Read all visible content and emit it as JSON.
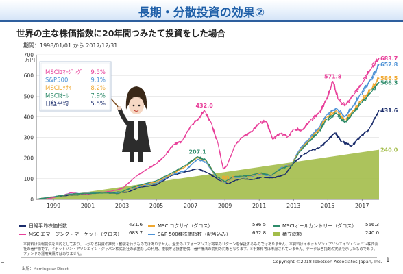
{
  "header": {
    "title": "長期・分散投資の効果②"
  },
  "subtitle": "世界の主な株価指数に20年間つみたて投資をした場合",
  "period": "期間：1998/01/01 から 2017/12/31",
  "callout": {
    "rows": [
      {
        "name": "MSCIｴﾏｰｼﾞﾝｸﾞ",
        "rate": "9.5%",
        "color": "#e8409a"
      },
      {
        "name": "S&P500",
        "rate": "9.1%",
        "color": "#4f93d6"
      },
      {
        "name": "MSCIｺｸｻｲ",
        "rate": "8.2%",
        "color": "#f0a830"
      },
      {
        "name": "MSCIｵｰﾙ",
        "rate": "7.9%",
        "color": "#2e8b6a"
      },
      {
        "name": "日経平均",
        "rate": "5.5%",
        "color": "#1a2c6b"
      }
    ]
  },
  "chart_data": {
    "type": "line",
    "yunit": "万円",
    "ylim": [
      0,
      700
    ],
    "yticks": [
      0,
      100,
      200,
      300,
      400,
      500,
      600,
      700
    ],
    "xlim": [
      1998,
      2017.99
    ],
    "xticks": [
      1999,
      2001,
      2003,
      2005,
      2007,
      2009,
      2011,
      2013,
      2015,
      2017
    ],
    "grid": true,
    "series": [
      {
        "name": "日経平均株価指数",
        "color": "#1a2c6b",
        "final": "431.6",
        "points": [
          [
            1998,
            1
          ],
          [
            1999,
            10
          ],
          [
            1999.9,
            21
          ],
          [
            2000.5,
            22
          ],
          [
            2001.3,
            29
          ],
          [
            2002,
            33
          ],
          [
            2002.9,
            35
          ],
          [
            2003.3,
            34
          ],
          [
            2004,
            58
          ],
          [
            2005,
            70
          ],
          [
            2005.9,
            115
          ],
          [
            2006.5,
            128
          ],
          [
            2007.4,
            148
          ],
          [
            2008,
            128
          ],
          [
            2008.7,
            92
          ],
          [
            2009.2,
            76
          ],
          [
            2009.6,
            92
          ],
          [
            2010,
            100
          ],
          [
            2010.6,
            96
          ],
          [
            2011.2,
            108
          ],
          [
            2011.8,
            104
          ],
          [
            2012.5,
            120
          ],
          [
            2013,
            175
          ],
          [
            2013.5,
            212
          ],
          [
            2014,
            236
          ],
          [
            2014.5,
            248
          ],
          [
            2015,
            285
          ],
          [
            2015.4,
            322
          ],
          [
            2015.8,
            280
          ],
          [
            2016.4,
            258
          ],
          [
            2016.9,
            305
          ],
          [
            2017.4,
            338
          ],
          [
            2017.99,
            431.6
          ]
        ]
      },
      {
        "name": "MSCIエマージング・マーケット（グロス）",
        "color": "#e8409a",
        "final": "683.7",
        "points": [
          [
            1998,
            1
          ],
          [
            1998.7,
            4
          ],
          [
            1999.5,
            18
          ],
          [
            2000,
            32
          ],
          [
            2000.8,
            25
          ],
          [
            2001.5,
            32
          ],
          [
            2002.3,
            38
          ],
          [
            2003,
            52
          ],
          [
            2003.8,
            110
          ],
          [
            2004.5,
            148
          ],
          [
            2005,
            172
          ],
          [
            2005.5,
            210
          ],
          [
            2006,
            265
          ],
          [
            2006.5,
            282
          ],
          [
            2007,
            355
          ],
          [
            2007.5,
            395
          ],
          [
            2007.8,
            432
          ],
          [
            2008.2,
            372
          ],
          [
            2008.6,
            270
          ],
          [
            2008.9,
            148
          ],
          [
            2009.1,
            160
          ],
          [
            2009.6,
            262
          ],
          [
            2010,
            300
          ],
          [
            2010.6,
            330
          ],
          [
            2011,
            368
          ],
          [
            2011.4,
            378
          ],
          [
            2011.8,
            290
          ],
          [
            2012.2,
            320
          ],
          [
            2012.7,
            305
          ],
          [
            2013,
            340
          ],
          [
            2013.5,
            335
          ],
          [
            2014,
            385
          ],
          [
            2014.5,
            420
          ],
          [
            2014.9,
            480
          ],
          [
            2015.3,
            571.8
          ],
          [
            2015.6,
            485
          ],
          [
            2016,
            452
          ],
          [
            2016.5,
            505
          ],
          [
            2017,
            560
          ],
          [
            2017.5,
            630
          ],
          [
            2017.99,
            683.7
          ]
        ]
      },
      {
        "name": "S&P 500種株価指数（配当込み）",
        "color": "#4f93d6",
        "final": "652.8",
        "points": [
          [
            1998,
            1
          ],
          [
            1999,
            13
          ],
          [
            2000,
            27
          ],
          [
            2001,
            30
          ],
          [
            2002,
            33
          ],
          [
            2002.8,
            29
          ],
          [
            2003.5,
            50
          ],
          [
            2004.3,
            68
          ],
          [
            2005,
            78
          ],
          [
            2005.9,
            118
          ],
          [
            2006.7,
            140
          ],
          [
            2007.4,
            195
          ],
          [
            2007.9,
            180
          ],
          [
            2008.5,
            110
          ],
          [
            2009,
            80
          ],
          [
            2009.5,
            106
          ],
          [
            2010,
            108
          ],
          [
            2010.5,
            110
          ],
          [
            2011,
            122
          ],
          [
            2011.7,
            112
          ],
          [
            2012.3,
            155
          ],
          [
            2012.9,
            170
          ],
          [
            2013.3,
            235
          ],
          [
            2013.9,
            292
          ],
          [
            2014.5,
            348
          ],
          [
            2014.9,
            406
          ],
          [
            2015.5,
            442
          ],
          [
            2016,
            400
          ],
          [
            2016.5,
            455
          ],
          [
            2016.9,
            510
          ],
          [
            2017.5,
            580
          ],
          [
            2017.99,
            652.8
          ]
        ]
      },
      {
        "name": "MSCIコクサイ（グロス）",
        "color": "#f0a830",
        "final": "586.5",
        "points": [
          [
            1998,
            1
          ],
          [
            1999,
            12
          ],
          [
            2000,
            25
          ],
          [
            2001,
            28
          ],
          [
            2002,
            31
          ],
          [
            2002.8,
            27
          ],
          [
            2003.5,
            52
          ],
          [
            2004.3,
            72
          ],
          [
            2005,
            85
          ],
          [
            2005.9,
            122
          ],
          [
            2006.7,
            158
          ],
          [
            2007.4,
            205
          ],
          [
            2007.9,
            188
          ],
          [
            2008.5,
            112
          ],
          [
            2009,
            82
          ],
          [
            2009.5,
            108
          ],
          [
            2010,
            110
          ],
          [
            2010.5,
            112
          ],
          [
            2011,
            125
          ],
          [
            2011.7,
            114
          ],
          [
            2012.3,
            150
          ],
          [
            2012.9,
            168
          ],
          [
            2013.3,
            228
          ],
          [
            2013.9,
            286
          ],
          [
            2014.5,
            340
          ],
          [
            2014.9,
            395
          ],
          [
            2015.5,
            430
          ],
          [
            2016,
            385
          ],
          [
            2016.5,
            430
          ],
          [
            2016.9,
            472
          ],
          [
            2017.5,
            530
          ],
          [
            2017.99,
            586.5
          ]
        ]
      },
      {
        "name": "MSCIオールカントリー（グロス）",
        "color": "#2e8b6a",
        "final": "566.3",
        "points": [
          [
            1998,
            1
          ],
          [
            1999,
            12
          ],
          [
            2000,
            25
          ],
          [
            2001,
            28
          ],
          [
            2002,
            31
          ],
          [
            2002.8,
            28
          ],
          [
            2003.5,
            55
          ],
          [
            2004.3,
            76
          ],
          [
            2005,
            90
          ],
          [
            2005.9,
            128
          ],
          [
            2006.7,
            165
          ],
          [
            2007.4,
            207.1
          ],
          [
            2007.9,
            190
          ],
          [
            2008.5,
            112
          ],
          [
            2009,
            85
          ],
          [
            2009.5,
            110
          ],
          [
            2010,
            112
          ],
          [
            2010.5,
            114
          ],
          [
            2011,
            128
          ],
          [
            2011.7,
            116
          ],
          [
            2012.3,
            150
          ],
          [
            2012.9,
            165
          ],
          [
            2013.3,
            225
          ],
          [
            2013.9,
            280
          ],
          [
            2014.5,
            330
          ],
          [
            2014.9,
            385
          ],
          [
            2015.5,
            418
          ],
          [
            2016,
            372
          ],
          [
            2016.5,
            420
          ],
          [
            2016.9,
            460
          ],
          [
            2017.5,
            515
          ],
          [
            2017.99,
            566.3
          ]
        ]
      }
    ],
    "area": {
      "name": "積立総額",
      "color": "#a3bd4a",
      "start": [
        1998,
        0
      ],
      "end": [
        2017.99,
        240
      ],
      "final": "240.0"
    },
    "annotations": [
      {
        "text": "683.7",
        "x": 2017.99,
        "y": 683.7,
        "color": "#e8409a"
      },
      {
        "text": "652.8",
        "x": 2017.99,
        "y": 652.8,
        "color": "#4f93d6"
      },
      {
        "text": "586.5",
        "x": 2017.99,
        "y": 586.5,
        "color": "#f0a830"
      },
      {
        "text": "566.3",
        "x": 2017.99,
        "y": 566.3,
        "color": "#2e8b6a"
      },
      {
        "text": "431.6",
        "x": 2017.99,
        "y": 431.6,
        "color": "#1a2c6b"
      },
      {
        "text": "240.0",
        "x": 2017.99,
        "y": 240,
        "color": "#a3bd4a"
      },
      {
        "text": "432.0",
        "x": 2007.8,
        "y": 432,
        "color": "#e8409a"
      },
      {
        "text": "571.8",
        "x": 2015.3,
        "y": 571.8,
        "color": "#e8409a"
      },
      {
        "text": "207.1",
        "x": 2007.4,
        "y": 207.1,
        "color": "#2e8b6a"
      },
      {
        "text": "80.5",
        "x": 2009.2,
        "y": 80.5,
        "color": "#f0a830"
      }
    ]
  },
  "legend": {
    "rows": [
      [
        {
          "name": "日経平均株価指数",
          "value": "431.6",
          "color": "#1a2c6b",
          "area": false
        },
        {
          "name": "MSCIコクサイ（グロス）",
          "value": "586.5",
          "color": "#f0a830",
          "area": false
        },
        {
          "name": "MSCIオールカントリー（グロス）",
          "value": "566.3",
          "color": "#2e8b6a",
          "area": false
        }
      ],
      [
        {
          "name": "MSCIエマージング・マーケット（グロス）",
          "value": "683.7",
          "color": "#e8409a",
          "area": false
        },
        {
          "name": "S&P 500種株価指数（配当込み）",
          "value": "652.8",
          "color": "#4f93d6",
          "area": false
        },
        {
          "name": "積立総額",
          "value": "240.0",
          "color": "#a3bd4a",
          "area": true
        }
      ]
    ]
  },
  "disclaimer": "本資料は情報提供を目的としており、いかなる投資の推奨・勧誘を行うものではありません。過去のパフォーマンスは将来のリターンを保証するものではありません。本資料はイボットソン・アソシエイツ・ジャパン株式会社の著作物です。イボットソン・アソシエイツ・ジャパン株式会社の承諾なしの利用、複製等は損害賠償、著作権法の罰則の対象となります。※手数料等は考慮されていません。データは各指数の実績を示したものであり、ファンドの運用実績ではありません。",
  "source": "出所：Morningstar Direct",
  "copyright": "Copyright ©2018 Ibbotson Associates Japan, Inc.",
  "page_number": "1"
}
